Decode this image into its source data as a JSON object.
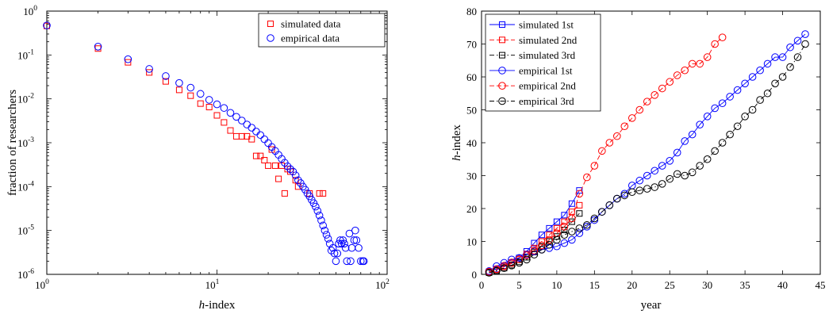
{
  "chart_data": [
    {
      "type": "scatter",
      "xlabel": "h-index",
      "xlabel_italic": "h",
      "xlabel_rest": "-index",
      "ylabel": "fraction of researchers",
      "xscale": "log",
      "yscale": "log",
      "xlim": [
        1,
        100
      ],
      "ylim": [
        1e-06,
        1
      ],
      "x_ticks": [
        {
          "v": 1,
          "m": "10",
          "e": "0"
        },
        {
          "v": 10,
          "m": "10",
          "e": "1"
        },
        {
          "v": 100,
          "m": "10",
          "e": "2"
        }
      ],
      "y_ticks": [
        {
          "v": 1,
          "m": "10",
          "e": "0"
        },
        {
          "v": 0.1,
          "m": "10",
          "e": "-1"
        },
        {
          "v": 0.01,
          "m": "10",
          "e": "-2"
        },
        {
          "v": 0.001,
          "m": "10",
          "e": "-3"
        },
        {
          "v": 0.0001,
          "m": "10",
          "e": "-4"
        },
        {
          "v": 1e-05,
          "m": "10",
          "e": "-5"
        },
        {
          "v": 1e-06,
          "m": "10",
          "e": "-6"
        }
      ],
      "legend_position": "top-right",
      "series": [
        {
          "name": "simulated data",
          "marker": "square",
          "color": "#ff0000",
          "points": [
            [
              1,
              0.46
            ],
            [
              2,
              0.14
            ],
            [
              3,
              0.068
            ],
            [
              4,
              0.04
            ],
            [
              5,
              0.025
            ],
            [
              6,
              0.016
            ],
            [
              7,
              0.0118
            ],
            [
              8,
              0.0078
            ],
            [
              9,
              0.0065
            ],
            [
              10,
              0.0042
            ],
            [
              11,
              0.0029
            ],
            [
              12,
              0.0019
            ],
            [
              13,
              0.0014
            ],
            [
              14,
              0.0014
            ],
            [
              15,
              0.0014
            ],
            [
              16,
              0.0012
            ],
            [
              17,
              0.0005
            ],
            [
              18,
              0.0005
            ],
            [
              19,
              0.0004
            ],
            [
              20,
              0.0003
            ],
            [
              21,
              0.0007
            ],
            [
              22,
              0.0003
            ],
            [
              23,
              0.00015
            ],
            [
              24,
              0.0003
            ],
            [
              25,
              7e-05
            ],
            [
              26,
              0.00025
            ],
            [
              27,
              0.00022
            ],
            [
              29,
              0.00014
            ],
            [
              30,
              0.0001
            ],
            [
              35,
              7e-05
            ],
            [
              40,
              7e-05
            ],
            [
              42,
              7e-05
            ]
          ]
        },
        {
          "name": "empirical data",
          "marker": "circle",
          "color": "#0000ff",
          "points": [
            [
              1,
              0.47
            ],
            [
              2,
              0.155
            ],
            [
              3,
              0.08
            ],
            [
              4,
              0.048
            ],
            [
              5,
              0.033
            ],
            [
              6,
              0.023
            ],
            [
              7,
              0.018
            ],
            [
              8,
              0.013
            ],
            [
              9,
              0.0095
            ],
            [
              10,
              0.0075
            ],
            [
              11,
              0.0062
            ],
            [
              12,
              0.0048
            ],
            [
              13,
              0.0039
            ],
            [
              14,
              0.0032
            ],
            [
              15,
              0.0026
            ],
            [
              16,
              0.0022
            ],
            [
              17,
              0.0018
            ],
            [
              18,
              0.0015
            ],
            [
              19,
              0.0012
            ],
            [
              20,
              0.00098
            ],
            [
              21,
              0.0008
            ],
            [
              22,
              0.00065
            ],
            [
              23,
              0.00053
            ],
            [
              24,
              0.00043
            ],
            [
              25,
              0.00035
            ],
            [
              26,
              0.00029
            ],
            [
              27,
              0.00025
            ],
            [
              28,
              0.00022
            ],
            [
              29,
              0.00018
            ],
            [
              30,
              0.00014
            ],
            [
              31,
              0.00012
            ],
            [
              32,
              0.0001
            ],
            [
              33,
              8.5e-05
            ],
            [
              34,
              7e-05
            ],
            [
              35,
              6e-05
            ],
            [
              36,
              5e-05
            ],
            [
              37,
              4.2e-05
            ],
            [
              38,
              3.5e-05
            ],
            [
              39,
              2.8e-05
            ],
            [
              40,
              2.2e-05
            ],
            [
              41,
              1.7e-05
            ],
            [
              42,
              1.3e-05
            ],
            [
              43,
              1e-05
            ],
            [
              44,
              8e-06
            ],
            [
              45,
              6.5e-06
            ],
            [
              46,
              5e-06
            ],
            [
              47,
              3.5e-06
            ],
            [
              48,
              4e-06
            ],
            [
              49,
              3e-06
            ],
            [
              50,
              2e-06
            ],
            [
              51,
              3e-06
            ],
            [
              52,
              5e-06
            ],
            [
              53,
              6e-06
            ],
            [
              54,
              5e-06
            ],
            [
              55,
              6e-06
            ],
            [
              56,
              5e-06
            ],
            [
              57,
              4e-06
            ],
            [
              58,
              2e-06
            ],
            [
              60,
              8.5e-06
            ],
            [
              61,
              2e-06
            ],
            [
              62,
              4e-06
            ],
            [
              64,
              6e-06
            ],
            [
              65,
              1e-05
            ],
            [
              66,
              6e-06
            ],
            [
              68,
              4e-06
            ],
            [
              70,
              2e-06
            ],
            [
              72,
              2e-06
            ],
            [
              73,
              2e-06
            ]
          ]
        }
      ]
    },
    {
      "type": "line",
      "xlabel": "year",
      "ylabel": "h-index",
      "ylabel_italic": "h",
      "ylabel_rest": "-index",
      "xlim": [
        0,
        45
      ],
      "ylim": [
        0,
        80
      ],
      "x_ticks": [
        0,
        5,
        10,
        15,
        20,
        25,
        30,
        35,
        40,
        45
      ],
      "y_ticks": [
        0,
        10,
        20,
        30,
        40,
        50,
        60,
        70,
        80
      ],
      "legend_position": "top-left",
      "series": [
        {
          "name": "simulated 1st",
          "marker": "square",
          "color": "#0000ff",
          "dash": "",
          "x": [
            1,
            2,
            3,
            4,
            5,
            6,
            7,
            8,
            9,
            10,
            11,
            12,
            13
          ],
          "y": [
            0.8,
            1.6,
            2.6,
            3.6,
            5.0,
            7.0,
            9.5,
            12.0,
            14.0,
            16.0,
            18.0,
            21.5,
            25.5
          ]
        },
        {
          "name": "simulated 2nd",
          "marker": "square",
          "color": "#ff0000",
          "dash": "6,3",
          "x": [
            1,
            2,
            3,
            4,
            5,
            6,
            7,
            8,
            9,
            10,
            11,
            12,
            13
          ],
          "y": [
            0.7,
            1.4,
            2.3,
            3.3,
            4.5,
            6.2,
            8.0,
            10.0,
            12.0,
            14.0,
            16.0,
            19.0,
            21.0
          ]
        },
        {
          "name": "simulated 3rd",
          "marker": "square",
          "color": "#000000",
          "dash": "6,3,1.5,3",
          "x": [
            1,
            2,
            3,
            4,
            5,
            6,
            7,
            8,
            9,
            10,
            11,
            12,
            13
          ],
          "y": [
            0.5,
            1.1,
            1.9,
            2.8,
            3.8,
            5.2,
            6.8,
            8.5,
            10.0,
            11.5,
            13.5,
            16.0,
            18.5
          ]
        },
        {
          "name": "empirical 1st",
          "marker": "circle",
          "color": "#0000ff",
          "dash": "",
          "x": [
            1,
            2,
            3,
            4,
            5,
            6,
            7,
            8,
            9,
            10,
            11,
            12,
            13,
            14,
            15,
            16,
            17,
            18,
            19,
            20,
            21,
            22,
            23,
            24,
            25,
            26,
            27,
            28,
            29,
            30,
            31,
            32,
            33,
            34,
            35,
            36,
            37,
            38,
            39,
            40,
            41,
            42,
            43
          ],
          "y": [
            1,
            2.5,
            3.5,
            4.5,
            5,
            6,
            7,
            7.5,
            8,
            8.5,
            9.5,
            10.5,
            12.5,
            14.5,
            16.5,
            19,
            21,
            23,
            24.5,
            27,
            28.5,
            30,
            31.5,
            33,
            34.5,
            37,
            40.5,
            42.5,
            45.5,
            48,
            50.5,
            52,
            54,
            56,
            58,
            60,
            62,
            64,
            66,
            66,
            69,
            71,
            73
          ]
        },
        {
          "name": "empirical 2nd",
          "marker": "circle",
          "color": "#ff0000",
          "dash": "6,3",
          "x": [
            1,
            2,
            3,
            4,
            5,
            6,
            7,
            8,
            9,
            10,
            11,
            12,
            13,
            14,
            15,
            16,
            17,
            18,
            19,
            20,
            21,
            22,
            23,
            24,
            25,
            26,
            27,
            28,
            29,
            30,
            31,
            32
          ],
          "y": [
            0.8,
            1.6,
            2.6,
            3.6,
            4.6,
            5.8,
            7.2,
            8.8,
            10.5,
            12.5,
            14.5,
            17,
            24.5,
            29.5,
            33,
            37.5,
            40,
            42,
            45,
            47.5,
            50,
            52.5,
            54.5,
            56.5,
            58.5,
            60.5,
            62,
            64,
            64,
            66,
            70,
            72
          ]
        },
        {
          "name": "empirical 3rd",
          "marker": "circle",
          "color": "#000000",
          "dash": "6,3,1.5,3",
          "x": [
            1,
            2,
            3,
            4,
            5,
            6,
            7,
            8,
            9,
            10,
            11,
            12,
            13,
            14,
            15,
            16,
            17,
            18,
            19,
            20,
            21,
            22,
            23,
            24,
            25,
            26,
            27,
            28,
            29,
            30,
            31,
            32,
            33,
            34,
            35,
            36,
            37,
            38,
            39,
            40,
            41,
            42,
            43
          ],
          "y": [
            0.5,
            1.1,
            1.9,
            2.7,
            3.5,
            4.5,
            6,
            7.5,
            9,
            10.5,
            12,
            13,
            14,
            15,
            17,
            19,
            21,
            23,
            24,
            25,
            25.5,
            26,
            26.5,
            27.5,
            29,
            30.5,
            30,
            31,
            33,
            35,
            37.5,
            40,
            42.5,
            45,
            48,
            50,
            53,
            55,
            58,
            60,
            63,
            66,
            70
          ]
        }
      ]
    }
  ]
}
